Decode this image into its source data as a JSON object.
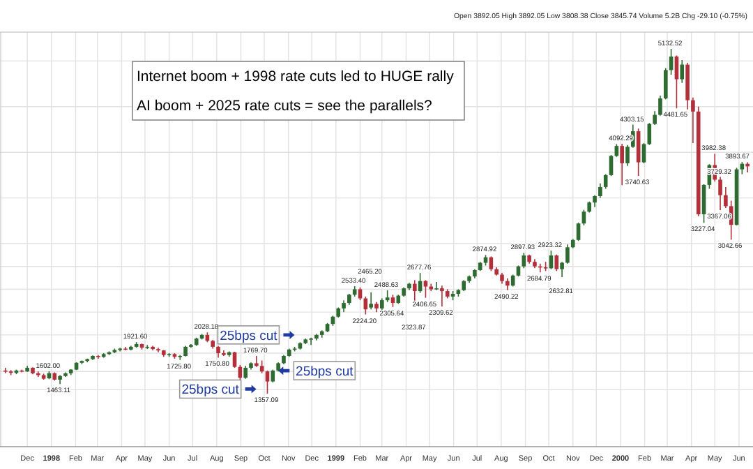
{
  "chart_data": {
    "type": "candlestick",
    "grid": true,
    "tick_labels": "x",
    "colors": [
      "#b3303a",
      "#b3303a",
      "#2e6b30",
      "#b3303a",
      "#2e6b30",
      "#b3303a",
      "#b3303a",
      "#b3303a",
      "#2e6b30",
      "#b3303a",
      "#2e6b30",
      "#2e6b30",
      "#2e6b30",
      "#2e6b30",
      "#2e6b30",
      "#2e6b30",
      "#2e6b30",
      "#b3303a",
      "#2e6b30",
      "#2e6b30",
      "#2e6b30",
      "#2e6b30",
      "#b3303a",
      "#2e6b30",
      "#2e6b30",
      "#b3303a",
      "#2e6b30",
      "#b3303a",
      "#b3303a",
      "#b3303a",
      "#2e6b30",
      "#b3303a",
      "#2e6b30",
      "#2e6b30",
      "#2e6b30",
      "#2e6b30",
      "#2e6b30",
      "#b3303a",
      "#b3303a",
      "#b3303a",
      "#b3303a",
      "#2e6b30",
      "#b3303a",
      "#b3303a",
      "#2e6b30",
      "#2e6b30",
      "#b3303a",
      "#b3303a",
      "#b3303a",
      "#2e6b30",
      "#2e6b30",
      "#2e6b30",
      "#2e6b30",
      "#2e6b30",
      "#2e6b30",
      "#2e6b30",
      "#2e6b30",
      "#2e6b30",
      "#2e6b30",
      "#2e6b30",
      "#2e6b30",
      "#2e6b30",
      "#2e6b30",
      "#2e6b30",
      "#2e6b30",
      "#b3303a",
      "#b3303a",
      "#2e6b30",
      "#b3303a",
      "#2e6b30",
      "#2e6b30",
      "#b3303a",
      "#2e6b30",
      "#2e6b30",
      "#2e6b30",
      "#b3303a",
      "#2e6b30",
      "#b3303a",
      "#b3303a",
      "#2e6b30",
      "#b3303a",
      "#b3303a",
      "#2e6b30",
      "#2e6b30",
      "#2e6b30",
      "#2e6b30",
      "#2e6b30",
      "#2e6b30",
      "#2e6b30",
      "#b3303a",
      "#b3303a",
      "#b3303a",
      "#b3303a",
      "#2e6b30",
      "#2e6b30",
      "#2e6b30",
      "#b3303a",
      "#b3303a",
      "#b3303a",
      "#b3303a",
      "#2e6b30",
      "#b3303a",
      "#2e6b30",
      "#2e6b30",
      "#2e6b30",
      "#2e6b30",
      "#2e6b30",
      "#2e6b30",
      "#2e6b30",
      "#2e6b30",
      "#2e6b30",
      "#2e6b30",
      "#2e6b30",
      "#b3303a",
      "#2e6b30",
      "#2e6b30",
      "#b3303a",
      "#2e6b30",
      "#2e6b30",
      "#2e6b30",
      "#2e6b30",
      "#2e6b30",
      "#2e6b30",
      "#b3303a",
      "#2e6b30",
      "#b3303a",
      "#b3303a",
      "#b3303a",
      "#2e6b30",
      "#2e6b30",
      "#b3303a",
      "#b3303a",
      "#b3303a",
      "#b3303a",
      "#2e6b30",
      "#2e6b30",
      "#b3303a"
    ],
    "xlim": [
      "1997-10-27",
      "2000-06-19"
    ],
    "ylim": [
      776.3,
      5315.9
    ],
    "xticks": [
      {
        "value": "1997-12-01",
        "label": "Dec"
      },
      {
        "value": "1998-01-01",
        "label": "1998"
      },
      {
        "value": "1998-02-01",
        "label": "Feb"
      },
      {
        "value": "1998-03-01",
        "label": "Mar"
      },
      {
        "value": "1998-04-01",
        "label": "Apr"
      },
      {
        "value": "1998-05-01",
        "label": "May"
      },
      {
        "value": "1998-06-01",
        "label": "Jun"
      },
      {
        "value": "1998-07-01",
        "label": "Jul"
      },
      {
        "value": "1998-08-01",
        "label": "Aug"
      },
      {
        "value": "1998-09-01",
        "label": "Sep"
      },
      {
        "value": "1998-10-01",
        "label": "Oct"
      },
      {
        "value": "1998-11-01",
        "label": "Nov"
      },
      {
        "value": "1998-12-01",
        "label": "Dec"
      },
      {
        "value": "1999-01-01",
        "label": "1999"
      },
      {
        "value": "1999-02-01",
        "label": "Feb"
      },
      {
        "value": "1999-03-01",
        "label": "Mar"
      },
      {
        "value": "1999-04-01",
        "label": "Apr"
      },
      {
        "value": "1999-05-01",
        "label": "May"
      },
      {
        "value": "1999-06-01",
        "label": "Jun"
      },
      {
        "value": "1999-07-01",
        "label": "Jul"
      },
      {
        "value": "1999-08-01",
        "label": "Aug"
      },
      {
        "value": "1999-09-01",
        "label": "Sep"
      },
      {
        "value": "1999-10-01",
        "label": "Oct"
      },
      {
        "value": "1999-11-01",
        "label": "Nov"
      },
      {
        "value": "1999-12-01",
        "label": "Dec"
      },
      {
        "value": "2000-01-01",
        "label": "2000"
      },
      {
        "value": "2000-02-01",
        "label": "Feb"
      },
      {
        "value": "2000-03-01",
        "label": "Mar"
      },
      {
        "value": "2000-04-01",
        "label": "Apr"
      },
      {
        "value": "2000-05-01",
        "label": "May"
      },
      {
        "value": "2000-06-01",
        "label": "Jun"
      }
    ],
    "yticks": [
      {
        "value": 1400,
        "label": null
      },
      {
        "value": 1600,
        "label": null
      },
      {
        "value": 1800,
        "label": null
      },
      {
        "value": 2000,
        "label": null
      },
      {
        "value": 2250,
        "label": null
      },
      {
        "value": 2500,
        "label": null
      },
      {
        "value": 2750,
        "label": null
      },
      {
        "value": 3000,
        "label": null
      },
      {
        "value": 3500,
        "label": null
      },
      {
        "value": 4000,
        "label": null
      },
      {
        "value": 4500,
        "label": null
      },
      {
        "value": 5000,
        "label": null
      }
    ],
    "x": [
      "1997-11-03",
      "1997-11-10",
      "1997-11-17",
      "1997-11-24",
      "1997-12-01",
      "1997-12-08",
      "1997-12-15",
      "1997-12-22",
      "1997-12-29",
      "1998-01-05",
      "1998-01-12",
      "1998-01-19",
      "1998-01-26",
      "1998-02-02",
      "1998-02-09",
      "1998-02-16",
      "1998-02-23",
      "1998-03-02",
      "1998-03-09",
      "1998-03-16",
      "1998-03-23",
      "1998-03-30",
      "1998-04-06",
      "1998-04-13",
      "1998-04-20",
      "1998-04-27",
      "1998-05-04",
      "1998-05-11",
      "1998-05-18",
      "1998-05-25",
      "1998-06-01",
      "1998-06-08",
      "1998-06-15",
      "1998-06-22",
      "1998-06-29",
      "1998-07-06",
      "1998-07-13",
      "1998-07-20",
      "1998-07-27",
      "1998-08-03",
      "1998-08-10",
      "1998-08-17",
      "1998-08-24",
      "1998-08-31",
      "1998-09-07",
      "1998-09-14",
      "1998-09-21",
      "1998-09-28",
      "1998-10-05",
      "1998-10-12",
      "1998-10-19",
      "1998-10-26",
      "1998-11-02",
      "1998-11-09",
      "1998-11-16",
      "1998-11-23",
      "1998-11-30",
      "1998-12-07",
      "1998-12-14",
      "1998-12-21",
      "1998-12-28",
      "1999-01-04",
      "1999-01-11",
      "1999-01-18",
      "1999-01-25",
      "1999-02-01",
      "1999-02-08",
      "1999-02-15",
      "1999-02-22",
      "1999-03-01",
      "1999-03-08",
      "1999-03-15",
      "1999-03-22",
      "1999-03-29",
      "1999-04-05",
      "1999-04-12",
      "1999-04-19",
      "1999-04-26",
      "1999-05-03",
      "1999-05-10",
      "1999-05-17",
      "1999-05-24",
      "1999-05-31",
      "1999-06-07",
      "1999-06-14",
      "1999-06-21",
      "1999-06-28",
      "1999-07-05",
      "1999-07-12",
      "1999-07-19",
      "1999-07-26",
      "1999-08-02",
      "1999-08-09",
      "1999-08-16",
      "1999-08-23",
      "1999-08-30",
      "1999-09-06",
      "1999-09-13",
      "1999-09-20",
      "1999-09-27",
      "1999-10-04",
      "1999-10-11",
      "1999-10-18",
      "1999-10-25",
      "1999-11-01",
      "1999-11-08",
      "1999-11-15",
      "1999-11-22",
      "1999-11-29",
      "1999-12-06",
      "1999-12-13",
      "1999-12-20",
      "1999-12-27",
      "2000-01-03",
      "2000-01-10",
      "2000-01-17",
      "2000-01-24",
      "2000-01-31",
      "2000-02-07",
      "2000-02-14",
      "2000-02-21",
      "2000-02-28",
      "2000-03-06",
      "2000-03-13",
      "2000-03-20",
      "2000-03-27",
      "2000-04-03",
      "2000-04-10",
      "2000-04-17",
      "2000-04-24",
      "2000-05-01",
      "2000-05-08",
      "2000-05-15",
      "2000-05-22",
      "2000-05-29",
      "2000-06-05",
      "2000-06-12"
    ],
    "ohlc": [
      [
        1610,
        1640,
        1580,
        1600
      ],
      [
        1600,
        1615,
        1560,
        1585
      ],
      [
        1585,
        1620,
        1570,
        1610
      ],
      [
        1610,
        1620,
        1590,
        1600
      ],
      [
        1600,
        1660,
        1595,
        1640
      ],
      [
        1640,
        1645,
        1570,
        1580
      ],
      [
        1580,
        1600,
        1540,
        1560
      ],
      [
        1560,
        1575,
        1510,
        1520
      ],
      [
        1525,
        1602.0,
        1515,
        1581
      ],
      [
        1581,
        1590,
        1500,
        1510
      ],
      [
        1510,
        1560,
        1463.11,
        1550
      ],
      [
        1550,
        1590,
        1540,
        1580
      ],
      [
        1580,
        1625,
        1560,
        1620
      ],
      [
        1620,
        1700,
        1615,
        1695
      ],
      [
        1695,
        1720,
        1680,
        1715
      ],
      [
        1715,
        1740,
        1700,
        1735
      ],
      [
        1735,
        1775,
        1725,
        1770
      ],
      [
        1770,
        1780,
        1740,
        1760
      ],
      [
        1760,
        1800,
        1750,
        1790
      ],
      [
        1790,
        1820,
        1780,
        1810
      ],
      [
        1810,
        1850,
        1800,
        1835
      ],
      [
        1835,
        1860,
        1820,
        1850
      ],
      [
        1850,
        1870,
        1830,
        1840
      ],
      [
        1840,
        1880,
        1830,
        1870
      ],
      [
        1870,
        1921.6,
        1860,
        1900
      ],
      [
        1900,
        1905,
        1840,
        1860
      ],
      [
        1860,
        1890,
        1845,
        1870
      ],
      [
        1870,
        1880,
        1830,
        1845
      ],
      [
        1845,
        1860,
        1810,
        1830
      ],
      [
        1830,
        1835,
        1760,
        1780
      ],
      [
        1780,
        1800,
        1760,
        1790
      ],
      [
        1790,
        1800,
        1740,
        1760
      ],
      [
        1760,
        1780,
        1725.8,
        1770
      ],
      [
        1770,
        1880,
        1765,
        1870
      ],
      [
        1870,
        1900,
        1860,
        1890
      ],
      [
        1890,
        1970,
        1880,
        1960
      ],
      [
        1960,
        2010,
        1950,
        2000
      ],
      [
        2000,
        2028.18,
        1920,
        1935
      ],
      [
        1935,
        1945,
        1850,
        1870
      ],
      [
        1870,
        1880,
        1750.8,
        1800
      ],
      [
        1800,
        1830,
        1770,
        1780
      ],
      [
        1780,
        1820,
        1760,
        1810
      ],
      [
        1810,
        1815,
        1640,
        1650
      ],
      [
        1650,
        1670,
        1500,
        1530
      ],
      [
        1530,
        1660,
        1520,
        1640
      ],
      [
        1640,
        1700,
        1620,
        1690
      ],
      [
        1690,
        1769.7,
        1650,
        1660
      ],
      [
        1660,
        1720,
        1580,
        1600
      ],
      [
        1600,
        1610,
        1357.09,
        1490
      ],
      [
        1490,
        1620,
        1480,
        1610
      ],
      [
        1610,
        1700,
        1600,
        1690
      ],
      [
        1690,
        1780,
        1680,
        1770
      ],
      [
        1770,
        1850,
        1760,
        1840
      ],
      [
        1840,
        1870,
        1820,
        1850
      ],
      [
        1850,
        1920,
        1840,
        1910
      ],
      [
        1910,
        1960,
        1900,
        1950
      ],
      [
        1950,
        1970,
        1890,
        1960
      ],
      [
        1960,
        2010,
        1940,
        2000
      ],
      [
        2000,
        2050,
        1970,
        2040
      ],
      [
        2040,
        2130,
        2030,
        2120
      ],
      [
        2120,
        2210,
        2100,
        2200
      ],
      [
        2200,
        2300,
        2190,
        2290
      ],
      [
        2290,
        2380,
        2250,
        2350
      ],
      [
        2350,
        2450,
        2330,
        2440
      ],
      [
        2440,
        2533.4,
        2420,
        2500
      ],
      [
        2500,
        2520,
        2380,
        2400
      ],
      [
        2400,
        2420,
        2224.2,
        2280
      ],
      [
        2300,
        2465.2,
        2280,
        2340
      ],
      [
        2340,
        2360,
        2250,
        2290
      ],
      [
        2290,
        2400,
        2270,
        2380
      ],
      [
        2380,
        2488.63,
        2360,
        2410
      ],
      [
        2410,
        2440,
        2305.64,
        2350
      ],
      [
        2350,
        2440,
        2340,
        2430
      ],
      [
        2430,
        2520,
        2420,
        2510
      ],
      [
        2510,
        2570,
        2490,
        2560
      ],
      [
        2560,
        2600,
        2323.87,
        2480
      ],
      [
        2480,
        2677.76,
        2460,
        2590
      ],
      [
        2590,
        2600,
        2406.65,
        2530
      ],
      [
        2530,
        2560,
        2480,
        2500
      ],
      [
        2500,
        2580,
        2490,
        2510
      ],
      [
        2510,
        2540,
        2309.62,
        2480
      ],
      [
        2480,
        2500,
        2400,
        2420
      ],
      [
        2420,
        2480,
        2380,
        2450
      ],
      [
        2450,
        2500,
        2420,
        2490
      ],
      [
        2490,
        2600,
        2480,
        2590
      ],
      [
        2590,
        2650,
        2570,
        2640
      ],
      [
        2640,
        2720,
        2620,
        2710
      ],
      [
        2710,
        2800,
        2700,
        2790
      ],
      [
        2790,
        2874.92,
        2760,
        2850
      ],
      [
        2850,
        2860,
        2700,
        2720
      ],
      [
        2720,
        2740,
        2650,
        2660
      ],
      [
        2660,
        2680,
        2560,
        2590
      ],
      [
        2590,
        2620,
        2490.22,
        2540
      ],
      [
        2540,
        2660,
        2530,
        2650
      ],
      [
        2650,
        2760,
        2640,
        2750
      ],
      [
        2750,
        2897.93,
        2730,
        2870
      ],
      [
        2870,
        2880,
        2780,
        2800
      ],
      [
        2800,
        2830,
        2730,
        2750
      ],
      [
        2750,
        2780,
        2684.79,
        2740
      ],
      [
        2740,
        2800,
        2700,
        2730
      ],
      [
        2730,
        2923.32,
        2720,
        2870
      ],
      [
        2870,
        2880,
        2700,
        2720
      ],
      [
        2720,
        2800,
        2632.81,
        2790
      ],
      [
        2790,
        2990,
        2780,
        2960
      ],
      [
        2960,
        3050,
        2950,
        3040
      ],
      [
        3040,
        3230,
        3030,
        3220
      ],
      [
        3220,
        3370,
        3200,
        3350
      ],
      [
        3350,
        3460,
        3340,
        3450
      ],
      [
        3450,
        3530,
        3400,
        3520
      ],
      [
        3520,
        3660,
        3500,
        3620
      ],
      [
        3620,
        3760,
        3600,
        3750
      ],
      [
        3750,
        3970,
        3740,
        3960
      ],
      [
        3960,
        4090,
        3950,
        4069
      ],
      [
        4069,
        4092.29,
        3640,
        3880
      ],
      [
        3880,
        4080,
        3850,
        4060
      ],
      [
        4060,
        4303.15,
        4050,
        4230
      ],
      [
        4230,
        4260,
        3740.63,
        3890
      ],
      [
        3890,
        4100,
        3880,
        4090
      ],
      [
        4090,
        4320,
        4080,
        4310
      ],
      [
        4310,
        4450,
        4300,
        4410
      ],
      [
        4410,
        4620,
        4400,
        4590
      ],
      [
        4590,
        4920,
        4580,
        4900
      ],
      [
        4900,
        5132.52,
        4850,
        5048
      ],
      [
        5048,
        5060,
        4481.65,
        4800
      ],
      [
        4800,
        5010,
        4760,
        4960
      ],
      [
        4960,
        4980,
        4470,
        4570
      ],
      [
        4570,
        4600,
        4100,
        4446
      ],
      [
        4446,
        4500,
        3300,
        3321
      ],
      [
        3321,
        3650,
        3227.04,
        3643
      ],
      [
        3643,
        3870,
        3600,
        3860
      ],
      [
        3860,
        3982.38,
        3680,
        3700
      ],
      [
        3700,
        3729.32,
        3367.06,
        3530
      ],
      [
        3530,
        3620,
        3390,
        3410
      ],
      [
        3410,
        3470,
        3042.66,
        3205
      ],
      [
        3205,
        3830,
        3200,
        3813
      ],
      [
        3813,
        3893.67,
        3760,
        3874
      ],
      [
        3874,
        3890,
        3780,
        3845.74
      ]
    ],
    "annotations": [
      "Open 3892.05 High 3892.05 Low 3808.38 Close 3845.74 Volume 5.2B Chg -29.10 (-0.75%)",
      "Internet boom + 1998 rate cuts led to HUGE rally",
      "AI boom + 2025 rate cuts = see the parallels?",
      {
        "text": "1602.00",
        "x": "1997-12-29",
        "y": 1602.0
      },
      {
        "text": "1463.11",
        "x": "1998-01-12",
        "y": 1463.11
      },
      {
        "text": "1921.60",
        "x": "1998-04-20",
        "y": 1921.6
      },
      {
        "text": "1725.80",
        "x": "1998-06-15",
        "y": 1725.8
      },
      {
        "text": "2028.18",
        "x": "1998-07-20",
        "y": 2028.18
      },
      {
        "text": "1750.80",
        "x": "1998-08-03",
        "y": 1750.8
      },
      {
        "text": "1769.70",
        "x": "1998-09-21",
        "y": 1769.7
      },
      {
        "text": "1357.09",
        "x": "1998-10-05",
        "y": 1357.09
      },
      {
        "text": "2533.40",
        "x": "1999-01-25",
        "y": 2533.4
      },
      {
        "text": "2224.20",
        "x": "1999-02-08",
        "y": 2224.2
      },
      {
        "text": "2465.20",
        "x": "1999-02-15",
        "y": 2465.2
      },
      {
        "text": "2488.63",
        "x": "1999-03-08",
        "y": 2488.63
      },
      {
        "text": "2305.64",
        "x": "1999-03-15",
        "y": 2305.64
      },
      {
        "text": "2323.87",
        "x": "1999-04-12",
        "y": 2323.87
      },
      {
        "text": "2677.76",
        "x": "1999-04-19",
        "y": 2677.76
      },
      {
        "text": "2406.65",
        "x": "1999-04-26",
        "y": 2406.65
      },
      {
        "text": "2309.62",
        "x": "1999-05-17",
        "y": 2309.62
      },
      {
        "text": "2874.92",
        "x": "1999-07-12",
        "y": 2874.92
      },
      {
        "text": "2490.22",
        "x": "1999-08-09",
        "y": 2490.22
      },
      {
        "text": "2897.93",
        "x": "1999-08-30",
        "y": 2897.93
      },
      {
        "text": "2684.79",
        "x": "1999-09-20",
        "y": 2684.79
      },
      {
        "text": "2923.32",
        "x": "1999-10-04",
        "y": 2923.32
      },
      {
        "text": "2632.81",
        "x": "1999-10-18",
        "y": 2632.81
      },
      {
        "text": "4092.29",
        "x": "2000-01-03",
        "y": 4092.29
      },
      {
        "text": "4303.15",
        "x": "2000-01-17",
        "y": 4303.15
      },
      {
        "text": "3740.63",
        "x": "2000-01-24",
        "y": 3740.63
      },
      {
        "text": "5132.52",
        "x": "2000-03-06",
        "y": 5132.52
      },
      {
        "text": "4481.65",
        "x": "2000-03-13",
        "y": 4481.65
      },
      {
        "text": "3227.04",
        "x": "2000-04-17",
        "y": 3227.04
      },
      {
        "text": "3982.38",
        "x": "2000-05-01",
        "y": 3982.38
      },
      {
        "text": "3729.32",
        "x": "2000-05-08",
        "y": 3729.32
      },
      {
        "text": "3367.06",
        "x": "2000-05-08",
        "y": 3367.06
      },
      {
        "text": "3042.66",
        "x": "2000-05-22",
        "y": 3042.66
      },
      {
        "text": "3893.67",
        "x": "2000-06-05",
        "y": 3893.67
      },
      {
        "text": "25bps cut",
        "x": "1998-11-16",
        "y": 2000
      },
      {
        "text": "25bps cut",
        "x": "1998-10-12",
        "y": 1608
      },
      {
        "text": "25bps cut",
        "x": "1998-09-28",
        "y": 1407
      }
    ]
  }
}
